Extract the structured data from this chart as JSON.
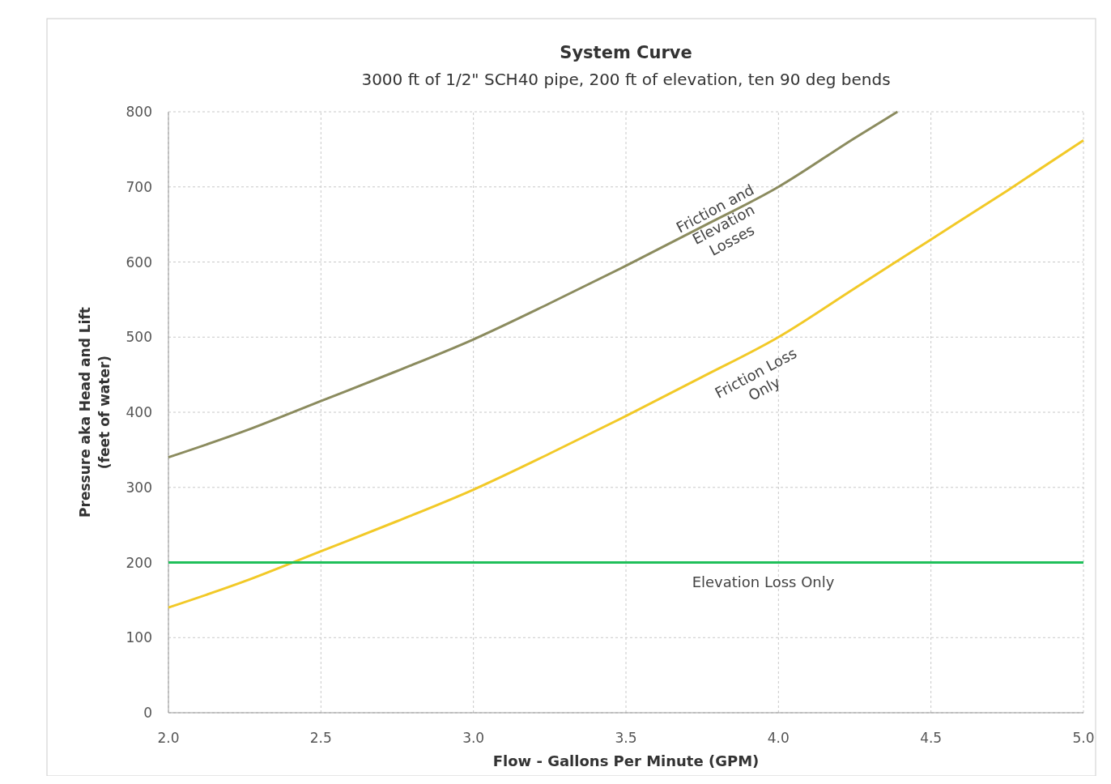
{
  "chart_data": {
    "type": "line",
    "title": "System Curve",
    "subtitle": "3000 ft of 1/2\" SCH40 pipe, 200 ft of elevation, ten 90 deg bends",
    "xlabel": "Flow - Gallons Per Minute (GPM)",
    "ylabel": "Pressure aka Head and Lift\n(feet of water)",
    "xlim": [
      2,
      5
    ],
    "ylim": [
      0,
      800
    ],
    "xticks": [
      {
        "value": 2,
        "label": "2.0"
      },
      {
        "value": 2.5,
        "label": "2.5"
      },
      {
        "value": 3,
        "label": "3.0"
      },
      {
        "value": 3.5,
        "label": "3.5"
      },
      {
        "value": 4,
        "label": "4.0"
      },
      {
        "value": 4.5,
        "label": "4.5"
      },
      {
        "value": 5,
        "label": "5.0"
      }
    ],
    "yticks": [
      0,
      100,
      200,
      300,
      400,
      500,
      600,
      700,
      800
    ],
    "grid": true,
    "marker": "none",
    "line_style": "solid",
    "series": [
      {
        "color": "#8b8b5e",
        "x": [
          2,
          2.25,
          2.5,
          2.75,
          3,
          3.25,
          3.5,
          3.75,
          4,
          4.25,
          4.39
        ],
        "values": [
          340,
          375,
          415,
          455,
          497,
          545,
          595,
          647,
          700,
          765,
          800
        ]
      },
      {
        "color": "#f2c927",
        "x": [
          2,
          2.25,
          2.5,
          2.75,
          3,
          3.25,
          3.5,
          3.75,
          4,
          4.25,
          4.5,
          4.75,
          5
        ],
        "values": [
          140,
          175,
          215,
          255,
          297,
          345,
          395,
          447,
          500,
          565,
          630,
          695,
          762
        ]
      },
      {
        "color": "#1fbf5a",
        "x": [
          2,
          5
        ],
        "values": [
          200,
          200
        ]
      }
    ],
    "annotations": [
      {
        "text": "Friction and\nElevation\nLosses",
        "x": 3.8,
        "y": 665
      },
      {
        "text": "Friction Loss\nOnly",
        "x": 4,
        "y": 500
      },
      {
        "text": "Elevation Loss Only",
        "x": 3.95,
        "y": 200
      }
    ]
  }
}
